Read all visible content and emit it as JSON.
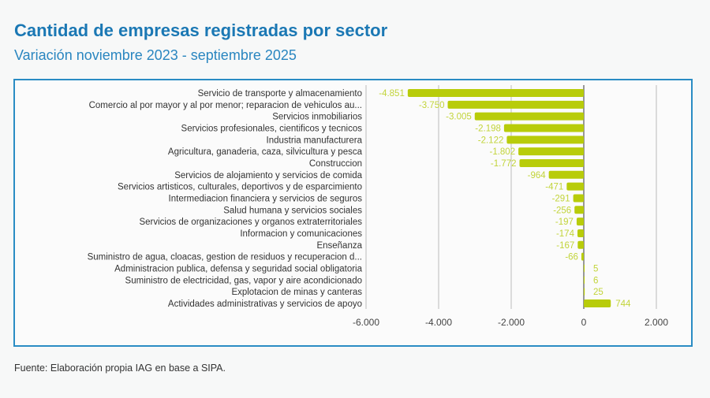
{
  "chart_data": {
    "type": "bar",
    "orientation": "horizontal",
    "title": "Cantidad de empresas registradas por sector",
    "subtitle": "Variación noviembre 2023 - septiembre 2025",
    "categories": [
      "Servicio de transporte y almacenamiento",
      "Comercio al por mayor y al por menor; reparacion de vehiculos au...",
      "Servicios inmobiliarios",
      "Servicios profesionales, cientificos y tecnicos",
      "Industria manufacturera",
      "Agricultura, ganaderia, caza, silvicultura y pesca",
      "Construccion",
      "Servicios de alojamiento y servicios de comida",
      "Servicios artisticos, culturales, deportivos y de esparcimiento",
      "Intermediacion financiera y servicios de seguros",
      "Salud humana y servicios sociales",
      "Servicios de organizaciones y organos extraterritoriales",
      "Informacion y comunicaciones",
      "Enseñanza",
      "Suministro de agua, cloacas, gestion de residuos y recuperacion d...",
      "Administracion publica, defensa y seguridad social obligatoria",
      "Suministro de electricidad, gas, vapor y aire acondicionado",
      "Explotacion de minas y canteras",
      "Actividades administrativas y servicios de apoyo"
    ],
    "values": [
      -4851,
      -3750,
      -3005,
      -2198,
      -2122,
      -1802,
      -1772,
      -964,
      -471,
      -291,
      -256,
      -197,
      -174,
      -167,
      -66,
      5,
      6,
      25,
      744
    ],
    "data_labels": [
      "-4.851",
      "-3.750",
      "-3.005",
      "-2.198",
      "-2.122",
      "-1.802",
      "-1.772",
      "-964",
      "-471",
      "-291",
      "-256",
      "-197",
      "-174",
      "-167",
      "-66",
      "5",
      "6",
      "25",
      "744"
    ],
    "xlim": [
      -6000,
      2000
    ],
    "xticks": [
      -6000,
      -4000,
      -2000,
      0,
      2000
    ],
    "xtick_labels": [
      "-6.000",
      "-4.000",
      "-2.000",
      "0",
      "2.000"
    ],
    "grid": true,
    "bar_color": "#b8cc0a",
    "label_color": "#c2d43a"
  },
  "source": "Fuente: Elaboración propia IAG en base a SIPA."
}
